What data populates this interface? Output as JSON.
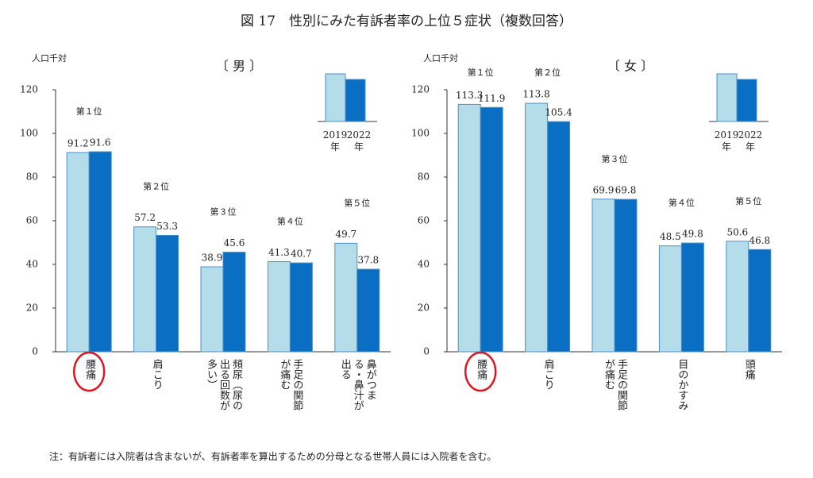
{
  "title": "図 17　性別にみた有訴者率の上位５症状（複数回答）",
  "note": "注：有訴者には入院者は含まないが、有訴者率を算出するための分母となる世帯人員には入院者を含む。",
  "chart_data": [
    {
      "type": "bar",
      "title": "〔 男 〕",
      "y_label": "人口千対",
      "categories": [
        "腰痛",
        "肩こり",
        "頻尿（尿の出る回数が多い）",
        "手足の関節が痛む",
        "鼻がつまる・鼻汁が出る"
      ],
      "rank_labels": [
        "第１位",
        "第２位",
        "第３位",
        "第４位",
        "第５位"
      ],
      "series": [
        {
          "name": "2019年",
          "color": "#b4dde9",
          "values": [
            91.2,
            57.2,
            38.9,
            41.3,
            49.7
          ]
        },
        {
          "name": "2022年",
          "color": "#0a6fc2",
          "values": [
            91.6,
            53.3,
            45.6,
            40.7,
            37.8
          ]
        }
      ],
      "ylim": [
        0,
        120
      ],
      "yticks": [
        0,
        20,
        40,
        60,
        80,
        100,
        120
      ]
    },
    {
      "type": "bar",
      "title": "〔 女 〕",
      "y_label": "人口千対",
      "categories": [
        "腰痛",
        "肩こり",
        "手足の関節が痛む",
        "目のかすみ",
        "頭痛"
      ],
      "rank_labels": [
        "第１位",
        "第２位",
        "第３位",
        "第４位",
        "第５位"
      ],
      "series": [
        {
          "name": "2019年",
          "color": "#b4dde9",
          "values": [
            113.3,
            113.8,
            69.9,
            48.5,
            50.6
          ]
        },
        {
          "name": "2022年",
          "color": "#0a6fc2",
          "values": [
            111.9,
            105.4,
            69.8,
            49.8,
            46.8
          ]
        }
      ],
      "ylim": [
        0,
        120
      ],
      "yticks": [
        0,
        20,
        40,
        60,
        80,
        100,
        120
      ]
    }
  ]
}
